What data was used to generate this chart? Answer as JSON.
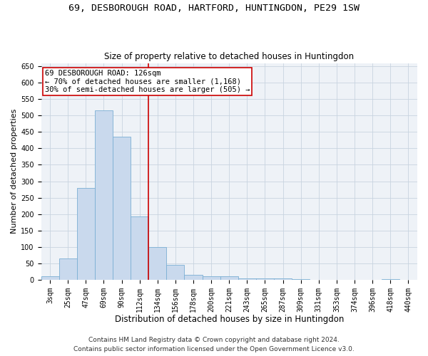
{
  "title": "69, DESBOROUGH ROAD, HARTFORD, HUNTINGDON, PE29 1SW",
  "subtitle": "Size of property relative to detached houses in Huntingdon",
  "xlabel": "Distribution of detached houses by size in Huntingdon",
  "ylabel": "Number of detached properties",
  "footnote1": "Contains HM Land Registry data © Crown copyright and database right 2024.",
  "footnote2": "Contains public sector information licensed under the Open Government Licence v3.0.",
  "bar_labels": [
    "3sqm",
    "25sqm",
    "47sqm",
    "69sqm",
    "90sqm",
    "112sqm",
    "134sqm",
    "156sqm",
    "178sqm",
    "200sqm",
    "221sqm",
    "243sqm",
    "265sqm",
    "287sqm",
    "309sqm",
    "331sqm",
    "353sqm",
    "374sqm",
    "396sqm",
    "418sqm",
    "440sqm"
  ],
  "bar_values": [
    10,
    65,
    280,
    515,
    435,
    192,
    100,
    46,
    15,
    11,
    10,
    4,
    5,
    5,
    2,
    0,
    0,
    0,
    0,
    2,
    0
  ],
  "bar_color": "#c9d9ed",
  "bar_edge_color": "#7bafd4",
  "grid_color": "#c8d4e0",
  "background_color": "#eef2f7",
  "vline_color": "#cc0000",
  "vline_x": 5.5,
  "annotation_text": "69 DESBOROUGH ROAD: 126sqm\n← 70% of detached houses are smaller (1,168)\n30% of semi-detached houses are larger (505) →",
  "annotation_box_color": "#cc0000",
  "ylim": [
    0,
    660
  ],
  "yticks": [
    0,
    50,
    100,
    150,
    200,
    250,
    300,
    350,
    400,
    450,
    500,
    550,
    600,
    650
  ],
  "title_fontsize": 9.5,
  "subtitle_fontsize": 8.5,
  "xlabel_fontsize": 8.5,
  "ylabel_fontsize": 8,
  "tick_fontsize": 7,
  "annotation_fontsize": 7.5,
  "footnote_fontsize": 6.5
}
